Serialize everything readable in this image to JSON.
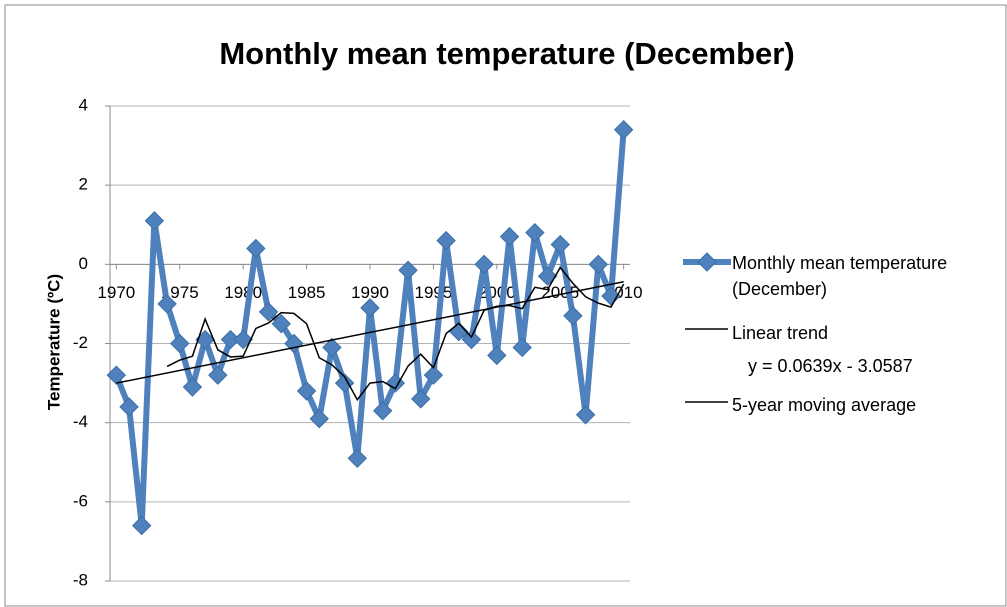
{
  "chart_data": {
    "type": "line",
    "title": "Monthly mean temperature (December)",
    "y_label": "Temperature (ºC)",
    "x": [
      1970,
      1971,
      1972,
      1973,
      1974,
      1975,
      1976,
      1977,
      1978,
      1979,
      1980,
      1981,
      1982,
      1983,
      1984,
      1985,
      1986,
      1987,
      1988,
      1989,
      1990,
      1991,
      1992,
      1993,
      1994,
      1995,
      1996,
      1997,
      1998,
      1999,
      2000,
      2001,
      2002,
      2003,
      2004,
      2005,
      2006,
      2007,
      2008,
      2009,
      2010
    ],
    "series": [
      {
        "name": "Monthly mean temperature (December)",
        "color": "#4f81bd",
        "marker": "diamond",
        "values": [
          -2.8,
          -3.6,
          -6.6,
          1.1,
          -1.0,
          -2.0,
          -3.1,
          -1.9,
          -2.8,
          -1.9,
          -1.9,
          0.4,
          -1.2,
          -1.5,
          -2.0,
          -3.2,
          -3.9,
          -2.1,
          -3.0,
          -4.9,
          -1.1,
          -3.7,
          -3.0,
          -0.15,
          -3.4,
          -2.8,
          0.6,
          -1.7,
          -1.9,
          0.0,
          -2.3,
          0.7,
          -2.1,
          0.8,
          -0.3,
          0.5,
          -1.3,
          -3.8,
          0.0,
          -0.8,
          3.4
        ]
      },
      {
        "name": "Linear trend",
        "color": "#000000",
        "equation": "y = 0.0639x - 3.0587",
        "x": [
          1970,
          2010
        ],
        "values": [
          -3.0,
          -0.44
        ]
      },
      {
        "name": "5-year moving average",
        "color": "#000000",
        "values": [
          null,
          null,
          null,
          null,
          -2.58,
          -2.42,
          -2.32,
          -1.38,
          -2.16,
          -2.34,
          -2.32,
          -1.62,
          -1.48,
          -1.22,
          -1.24,
          -1.5,
          -2.36,
          -2.54,
          -2.84,
          -3.42,
          -3.0,
          -2.96,
          -3.14,
          -2.57,
          -2.27,
          -2.61,
          -1.75,
          -1.49,
          -1.84,
          -1.16,
          -1.06,
          -1.04,
          -1.12,
          -0.58,
          -0.64,
          -0.08,
          -0.48,
          -0.82,
          -0.98,
          -1.08,
          -0.5
        ]
      }
    ],
    "xlim": [
      1969.5,
      2010.5
    ],
    "xticks": [
      1970,
      1975,
      1980,
      1985,
      1990,
      1995,
      2000,
      2005,
      2010
    ],
    "ylim": [
      -8,
      4
    ],
    "yticks": [
      -8,
      -6,
      -4,
      -2,
      0,
      2,
      4
    ],
    "grid": true,
    "legend": "right"
  }
}
